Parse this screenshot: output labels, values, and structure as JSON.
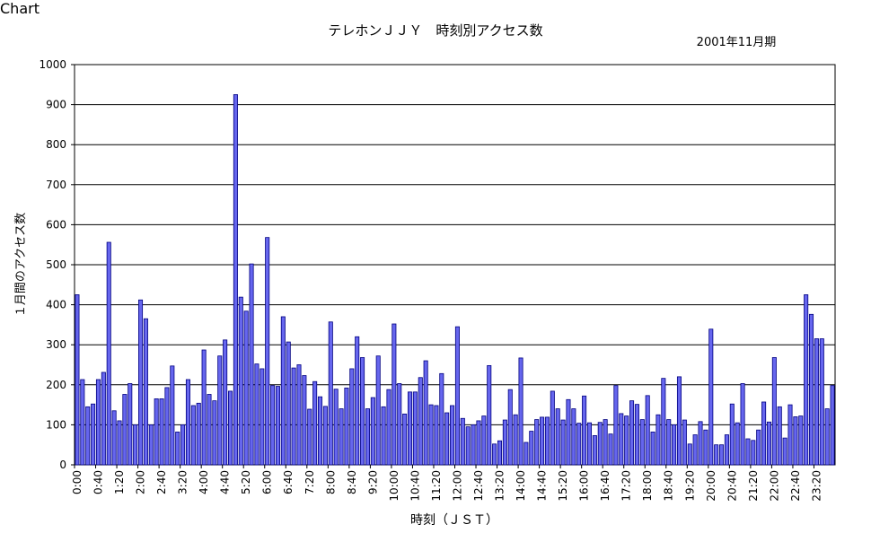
{
  "chart_data": {
    "type": "bar",
    "title": "テレホンＪＪＹ　時刻別アクセス数",
    "subtitle": "2001年11月期",
    "xlabel": "時刻（ＪＳＴ）",
    "ylabel": "１月間のアクセス数",
    "ylim": [
      0,
      1000
    ],
    "yticks": [
      0,
      100,
      200,
      300,
      400,
      500,
      600,
      700,
      800,
      900,
      1000
    ],
    "interval_minutes": 10,
    "grid": true,
    "legend": "none",
    "colors": {
      "bar_fill": "#6666ee",
      "bar_stroke": "#000080",
      "plot_bg": "#ffffff"
    },
    "tick_labels": [
      {
        "index": 0,
        "label": "0:00"
      },
      {
        "index": 4,
        "label": "0:40"
      },
      {
        "index": 8,
        "label": "1:20"
      },
      {
        "index": 12,
        "label": "2:00"
      },
      {
        "index": 16,
        "label": "2:40"
      },
      {
        "index": 20,
        "label": "3:20"
      },
      {
        "index": 24,
        "label": "4:00"
      },
      {
        "index": 28,
        "label": "4:40"
      },
      {
        "index": 32,
        "label": "5:20"
      },
      {
        "index": 36,
        "label": "6:00"
      },
      {
        "index": 40,
        "label": "6:40"
      },
      {
        "index": 44,
        "label": "7:20"
      },
      {
        "index": 48,
        "label": "8:00"
      },
      {
        "index": 52,
        "label": "8:40"
      },
      {
        "index": 56,
        "label": "9:20"
      },
      {
        "index": 60,
        "label": "10:00"
      },
      {
        "index": 64,
        "label": "10:40"
      },
      {
        "index": 68,
        "label": "11:20"
      },
      {
        "index": 72,
        "label": "12:00"
      },
      {
        "index": 76,
        "label": "12:40"
      },
      {
        "index": 80,
        "label": "13:20"
      },
      {
        "index": 84,
        "label": "14:00"
      },
      {
        "index": 88,
        "label": "14:40"
      },
      {
        "index": 92,
        "label": "15:20"
      },
      {
        "index": 96,
        "label": "16:00"
      },
      {
        "index": 100,
        "label": "16:40"
      },
      {
        "index": 104,
        "label": "17:20"
      },
      {
        "index": 108,
        "label": "18:00"
      },
      {
        "index": 112,
        "label": "18:40"
      },
      {
        "index": 116,
        "label": "19:20"
      },
      {
        "index": 120,
        "label": "20:00"
      },
      {
        "index": 124,
        "label": "20:40"
      },
      {
        "index": 128,
        "label": "21:20"
      },
      {
        "index": 132,
        "label": "22:00"
      },
      {
        "index": 136,
        "label": "22:40"
      },
      {
        "index": 140,
        "label": "23:20"
      }
    ],
    "values": [
      425,
      213,
      145,
      152,
      213,
      231,
      556,
      135,
      110,
      176,
      203,
      100,
      412,
      365,
      100,
      165,
      165,
      193,
      247,
      82,
      100,
      213,
      148,
      154,
      287,
      176,
      160,
      272,
      312,
      184,
      925,
      419,
      384,
      502,
      252,
      240,
      568,
      198,
      196,
      370,
      307,
      242,
      250,
      223,
      139,
      208,
      170,
      146,
      357,
      189,
      140,
      192,
      240,
      320,
      268,
      140,
      168,
      272,
      145,
      188,
      352,
      203,
      127,
      182,
      182,
      218,
      260,
      150,
      148,
      228,
      130,
      148,
      345,
      116,
      95,
      100,
      110,
      122,
      248,
      52,
      60,
      112,
      188,
      125,
      267,
      56,
      84,
      113,
      119,
      119,
      184,
      140,
      112,
      163,
      140,
      104,
      172,
      105,
      73,
      106,
      113,
      77,
      198,
      128,
      122,
      160,
      151,
      113,
      173,
      82,
      125,
      216,
      113,
      100,
      220,
      112,
      52,
      75,
      108,
      87,
      339,
      50,
      50,
      75,
      152,
      105,
      203,
      65,
      61,
      87,
      157,
      107,
      268,
      145,
      67,
      150,
      120,
      122,
      425,
      376,
      315,
      315,
      140,
      198
    ]
  }
}
